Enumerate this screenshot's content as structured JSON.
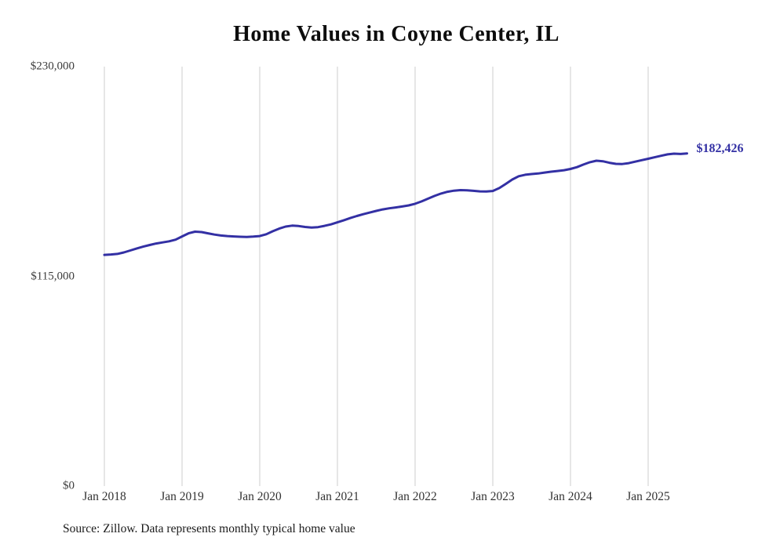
{
  "title": "Home Values in Coyne Center, IL",
  "end_label": "$182,426",
  "source_note": "Source: Zillow. Data represents monthly typical home value",
  "colors": {
    "line": "#3330a4",
    "grid": "#cccccc",
    "axis_text": "#3d3d3d",
    "end_label": "#3330a4",
    "background": "#ffffff"
  },
  "chart_data": {
    "type": "line",
    "title": "Home Values in Coyne Center, IL",
    "xlabel": "",
    "ylabel": "",
    "ylim": [
      0,
      230000
    ],
    "grid": "vertical-only",
    "legend": "none",
    "final_value": 182426,
    "y_ticks": [
      {
        "value": 0,
        "label": "$0"
      },
      {
        "value": 115000,
        "label": "$115,000"
      },
      {
        "value": 230000,
        "label": "$230,000"
      }
    ],
    "x_ticks": [
      "Jan 2018",
      "Jan 2019",
      "Jan 2020",
      "Jan 2021",
      "Jan 2022",
      "Jan 2023",
      "Jan 2024",
      "Jan 2025"
    ],
    "months": [
      "2018-01",
      "2018-02",
      "2018-03",
      "2018-04",
      "2018-05",
      "2018-06",
      "2018-07",
      "2018-08",
      "2018-09",
      "2018-10",
      "2018-11",
      "2018-12",
      "2019-01",
      "2019-02",
      "2019-03",
      "2019-04",
      "2019-05",
      "2019-06",
      "2019-07",
      "2019-08",
      "2019-09",
      "2019-10",
      "2019-11",
      "2019-12",
      "2020-01",
      "2020-02",
      "2020-03",
      "2020-04",
      "2020-05",
      "2020-06",
      "2020-07",
      "2020-08",
      "2020-09",
      "2020-10",
      "2020-11",
      "2020-12",
      "2021-01",
      "2021-02",
      "2021-03",
      "2021-04",
      "2021-05",
      "2021-06",
      "2021-07",
      "2021-08",
      "2021-09",
      "2021-10",
      "2021-11",
      "2021-12",
      "2022-01",
      "2022-02",
      "2022-03",
      "2022-04",
      "2022-05",
      "2022-06",
      "2022-07",
      "2022-08",
      "2022-09",
      "2022-10",
      "2022-11",
      "2022-12",
      "2023-01",
      "2023-02",
      "2023-03",
      "2023-04",
      "2023-05",
      "2023-06",
      "2023-07",
      "2023-08",
      "2023-09",
      "2023-10",
      "2023-11",
      "2023-12",
      "2024-01",
      "2024-02",
      "2024-03",
      "2024-04",
      "2024-05",
      "2024-06",
      "2024-07",
      "2024-08",
      "2024-09",
      "2024-10",
      "2024-11",
      "2024-12",
      "2025-01",
      "2025-02",
      "2025-03",
      "2025-04",
      "2025-05",
      "2025-06",
      "2025-07"
    ],
    "series": [
      {
        "name": "Monthly typical home value",
        "values": [
          126800,
          127000,
          127300,
          128100,
          129200,
          130300,
          131300,
          132200,
          133000,
          133600,
          134200,
          135100,
          136900,
          138600,
          139500,
          139300,
          138600,
          137900,
          137400,
          137100,
          136900,
          136700,
          136600,
          136800,
          137100,
          138100,
          139700,
          141200,
          142300,
          142800,
          142600,
          142100,
          141800,
          142000,
          142700,
          143500,
          144600,
          145800,
          147000,
          148100,
          149100,
          150000,
          150900,
          151700,
          152300,
          152800,
          153300,
          153900,
          154800,
          156100,
          157600,
          159100,
          160400,
          161400,
          162000,
          162300,
          162200,
          161900,
          161600,
          161500,
          161800,
          163400,
          165700,
          168100,
          169900,
          170700,
          171100,
          171400,
          171900,
          172400,
          172800,
          173200,
          173900,
          174900,
          176300,
          177600,
          178400,
          178100,
          177300,
          176700,
          176600,
          177100,
          177900,
          178700,
          179500,
          180300,
          181100,
          181900,
          182300,
          182100,
          182426
        ]
      }
    ]
  }
}
